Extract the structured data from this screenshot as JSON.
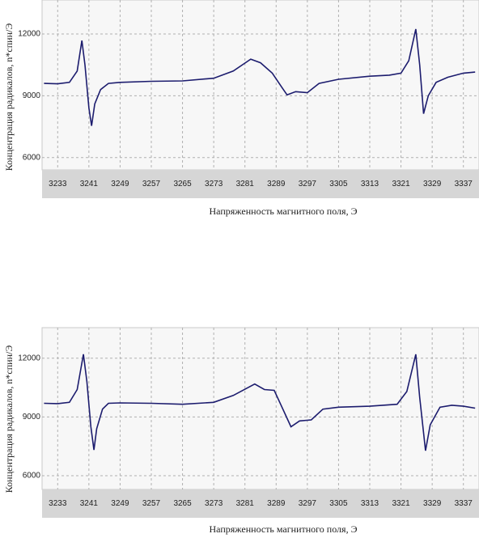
{
  "chart_data": [
    {
      "type": "line",
      "x_label": "Напряженность магнитного поля, Э",
      "y_label": "Концентрация радикалов, n*спин/Э",
      "xlim": [
        3229,
        3341
      ],
      "ylim": [
        5400,
        13650
      ],
      "xticks": [
        3233,
        3241,
        3249,
        3257,
        3265,
        3273,
        3281,
        3289,
        3297,
        3305,
        3313,
        3321,
        3329,
        3337
      ],
      "yticks": [
        6000,
        9000,
        12000
      ],
      "grid": true,
      "series": [
        {
          "color": "#1c1c6e",
          "x": [
            3229.5,
            3233,
            3236,
            3238,
            3239.2,
            3240,
            3241,
            3241.7,
            3242.5,
            3244,
            3246,
            3249,
            3257,
            3265,
            3273,
            3278,
            3282.5,
            3285,
            3288,
            3290.5,
            3291.8,
            3294,
            3297,
            3300,
            3305,
            3313,
            3318,
            3321,
            3323,
            3324.8,
            3325.8,
            3326.8,
            3328,
            3330,
            3333,
            3337,
            3340
          ],
          "values": [
            9600,
            9580,
            9650,
            10200,
            11680,
            10500,
            8400,
            7540,
            8600,
            9300,
            9600,
            9650,
            9700,
            9720,
            9850,
            10200,
            10780,
            10600,
            10100,
            9400,
            9040,
            9200,
            9150,
            9600,
            9800,
            9950,
            10000,
            10100,
            10700,
            12240,
            10500,
            8130,
            9000,
            9650,
            9900,
            10100,
            10150
          ]
        }
      ]
    },
    {
      "type": "line",
      "x_label": "Напряженность магнитного поля, Э",
      "y_label": "Концентрация радикалов, n*спин/Э",
      "xlim": [
        3229,
        3341
      ],
      "ylim": [
        5300,
        13560
      ],
      "xticks": [
        3233,
        3241,
        3249,
        3257,
        3265,
        3273,
        3281,
        3289,
        3297,
        3305,
        3313,
        3321,
        3329,
        3337
      ],
      "yticks": [
        6000,
        9000,
        12000
      ],
      "grid": true,
      "series": [
        {
          "color": "#1c1c6e",
          "x": [
            3229.5,
            3233,
            3236,
            3238,
            3239.6,
            3240.5,
            3241.5,
            3242.3,
            3243,
            3244.5,
            3246,
            3249,
            3257,
            3265,
            3273,
            3278,
            3283.5,
            3286,
            3288.5,
            3290.5,
            3292.8,
            3295,
            3298,
            3301,
            3305,
            3313,
            3320,
            3322.5,
            3324.8,
            3325.8,
            3327.3,
            3328.5,
            3331,
            3334,
            3337,
            3340
          ],
          "values": [
            9700,
            9680,
            9750,
            10400,
            12200,
            10800,
            8500,
            7320,
            8400,
            9400,
            9700,
            9720,
            9700,
            9650,
            9750,
            10100,
            10680,
            10400,
            10360,
            9500,
            8500,
            8800,
            8850,
            9400,
            9500,
            9550,
            9650,
            10300,
            12200,
            10000,
            7280,
            8600,
            9500,
            9600,
            9550,
            9450
          ]
        }
      ]
    }
  ]
}
